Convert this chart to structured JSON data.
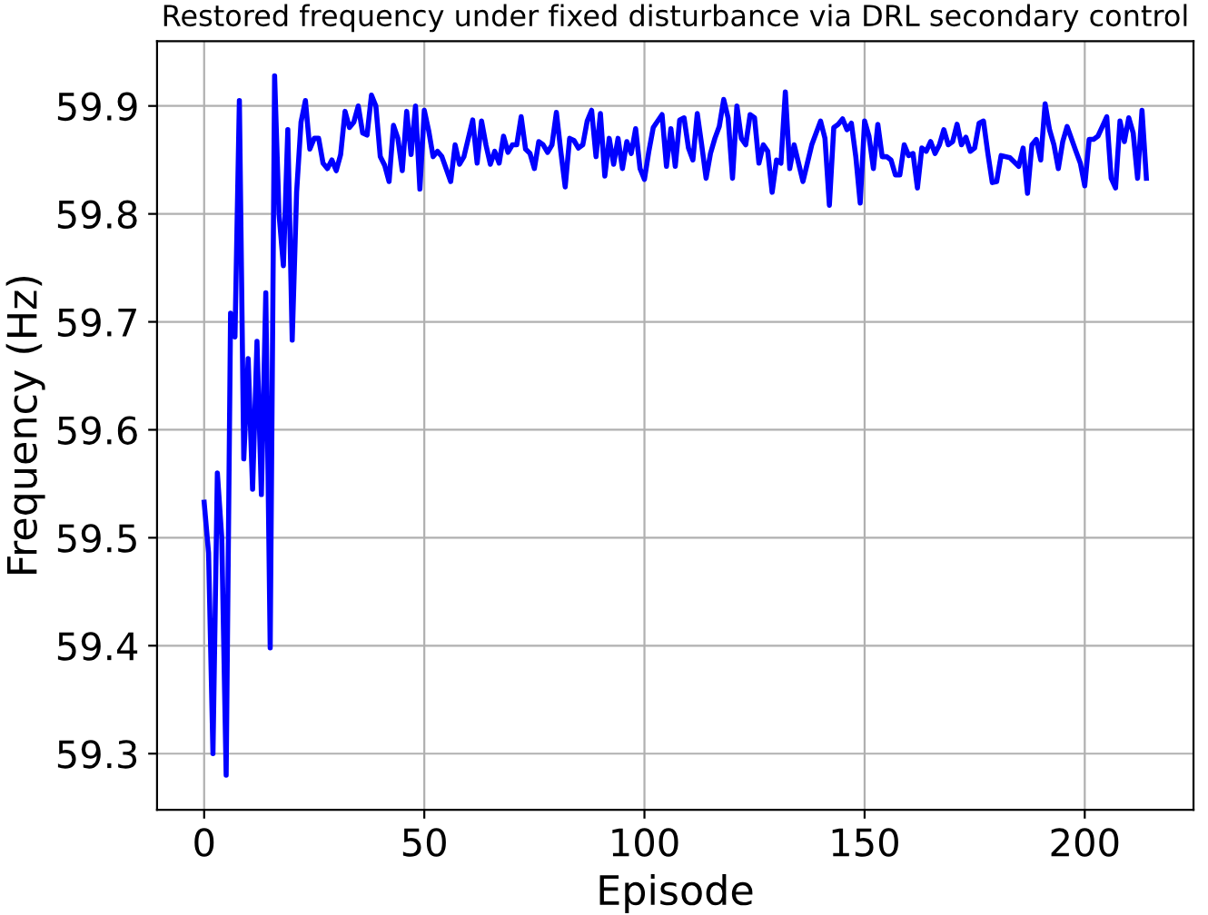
{
  "chart_data": {
    "type": "line",
    "title": "Restored frequency under fixed disturbance via DRL secondary control",
    "xlabel": "Episode",
    "ylabel": "Frequency (Hz)",
    "xlim": [
      -10.7,
      224.7
    ],
    "ylim": [
      59.248,
      59.96
    ],
    "xticks": [
      0,
      50,
      100,
      150,
      200
    ],
    "yticks": [
      59.3,
      59.4,
      59.5,
      59.6,
      59.7,
      59.8,
      59.9
    ],
    "grid": true,
    "line_style": "solid",
    "marker": "none",
    "series": [
      {
        "color": "#0000ff",
        "x": [
          0,
          1,
          2,
          3,
          4,
          5,
          6,
          7,
          8,
          9,
          10,
          11,
          12,
          13,
          14,
          15,
          16,
          17,
          18,
          19,
          20,
          21,
          22,
          23,
          24,
          25,
          26,
          27,
          28,
          29,
          30,
          31,
          32,
          33,
          34,
          35,
          36,
          37,
          38,
          39,
          40,
          41,
          42,
          43,
          44,
          45,
          46,
          47,
          48,
          49,
          50,
          51,
          52,
          53,
          54,
          56,
          57,
          58,
          59,
          61,
          62,
          63,
          64,
          65,
          66,
          67,
          68,
          69,
          70,
          71,
          72,
          73,
          74,
          75,
          76,
          77,
          78,
          79,
          80,
          81,
          82,
          83,
          84,
          85,
          86,
          87,
          88,
          89,
          90,
          91,
          92,
          93,
          94,
          95,
          96,
          97,
          98,
          99,
          100,
          101,
          102,
          104,
          105,
          106,
          107,
          108,
          109,
          110,
          111,
          112,
          113,
          114,
          115,
          116,
          117,
          118,
          119,
          120,
          121,
          122,
          123,
          124,
          125,
          126,
          127,
          128,
          129,
          130,
          131,
          132,
          133,
          134,
          135,
          136,
          137,
          138,
          140,
          141,
          142,
          143,
          144,
          145,
          146,
          147,
          148,
          149,
          150,
          151,
          152,
          153,
          154,
          155,
          156,
          157,
          158,
          159,
          160,
          161,
          162,
          163,
          164,
          165,
          166,
          167,
          168,
          169,
          170,
          171,
          172,
          173,
          174,
          175,
          176,
          177,
          178,
          179,
          180,
          181,
          183,
          185,
          186,
          187,
          188,
          189,
          190,
          191,
          192,
          193,
          194,
          195,
          196,
          198,
          199,
          200,
          201,
          202,
          203,
          204,
          205,
          206,
          207,
          208,
          209,
          210,
          211,
          212,
          213,
          214
        ],
        "values": [
          59.533,
          59.486,
          59.3,
          59.56,
          59.5,
          59.28,
          59.708,
          59.686,
          59.905,
          59.573,
          59.666,
          59.545,
          59.682,
          59.54,
          59.727,
          59.398,
          59.928,
          59.8,
          59.752,
          59.878,
          59.683,
          59.82,
          59.885,
          59.905,
          59.86,
          59.87,
          59.87,
          59.847,
          59.842,
          59.85,
          59.84,
          59.855,
          59.895,
          59.88,
          59.885,
          59.9,
          59.875,
          59.873,
          59.91,
          59.9,
          59.853,
          59.845,
          59.83,
          59.882,
          59.87,
          59.84,
          59.895,
          59.855,
          59.9,
          59.823,
          59.896,
          59.877,
          59.853,
          59.858,
          59.853,
          59.83,
          59.864,
          59.846,
          59.853,
          59.887,
          59.847,
          59.886,
          59.864,
          59.846,
          59.858,
          59.847,
          59.872,
          59.857,
          59.864,
          59.864,
          59.89,
          59.86,
          59.856,
          59.842,
          59.867,
          59.864,
          59.857,
          59.864,
          59.894,
          59.858,
          59.825,
          59.87,
          59.868,
          59.861,
          59.864,
          59.886,
          59.896,
          59.853,
          59.893,
          59.835,
          59.87,
          59.846,
          59.87,
          59.842,
          59.867,
          59.856,
          59.879,
          59.842,
          59.832,
          59.858,
          59.88,
          59.892,
          59.844,
          59.879,
          59.844,
          59.887,
          59.889,
          59.861,
          59.85,
          59.893,
          59.864,
          59.833,
          59.856,
          59.87,
          59.881,
          59.906,
          59.889,
          59.833,
          59.9,
          59.87,
          59.864,
          59.892,
          59.889,
          59.847,
          59.864,
          59.858,
          59.82,
          59.85,
          59.847,
          59.913,
          59.842,
          59.864,
          59.847,
          59.83,
          59.847,
          59.864,
          59.886,
          59.87,
          59.808,
          59.88,
          59.883,
          59.888,
          59.878,
          59.884,
          59.853,
          59.81,
          59.886,
          59.872,
          59.842,
          59.883,
          59.853,
          59.853,
          59.85,
          59.836,
          59.836,
          59.864,
          59.854,
          59.856,
          59.824,
          59.861,
          59.858,
          59.867,
          59.856,
          59.864,
          59.878,
          59.864,
          59.867,
          59.883,
          59.864,
          59.871,
          59.858,
          59.861,
          59.884,
          59.886,
          59.856,
          59.829,
          59.83,
          59.854,
          59.852,
          59.844,
          59.861,
          59.819,
          59.864,
          59.869,
          59.85,
          59.902,
          59.878,
          59.864,
          59.842,
          59.867,
          59.881,
          59.858,
          59.847,
          59.826,
          59.869,
          59.869,
          59.872,
          59.881,
          59.89,
          59.833,
          59.824,
          59.886,
          59.867,
          59.889,
          59.875,
          59.833,
          59.896,
          59.833
        ]
      }
    ]
  }
}
